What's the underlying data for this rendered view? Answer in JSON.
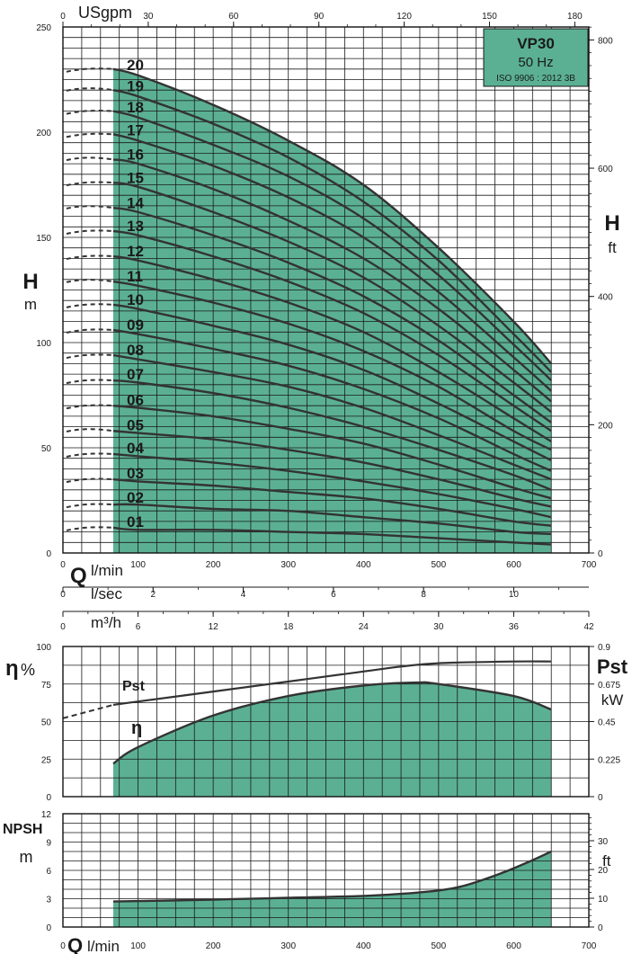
{
  "colors": {
    "fill": "#5bb093",
    "curve": "#333333",
    "grid": "#1a1a1a"
  },
  "labels": {
    "usgpm": "USgpm",
    "h_left": "H",
    "h_left_unit": "m",
    "h_right": "H",
    "h_right_unit": "ft",
    "q": "Q",
    "lmin": "l/min",
    "lsec": "l/sec",
    "m3h": "m³/h",
    "eta": "η",
    "eta_pct": "%",
    "eta_curve": "η",
    "pst_curve": "Pst",
    "pst": "Pst",
    "kw": "kW",
    "npsh": "NPSH",
    "npsh_m": "m",
    "npsh_ft": "ft",
    "q_bottom": "Q",
    "lmin_bottom": "l/min"
  },
  "legend": {
    "model": "VP30",
    "freq": "50 Hz",
    "iso": "ISO 9906 : 2012 3B"
  },
  "chart_data": [
    {
      "type": "line",
      "title": "VP30",
      "xlabel": "Q l/min",
      "ylabel": "H m",
      "xlim": [
        0,
        700
      ],
      "ylim": [
        0,
        250
      ],
      "grid": true,
      "x_ticks": [
        "0",
        "100",
        "200",
        "300",
        "400",
        "500",
        "600",
        "700"
      ],
      "y_ticks": [
        "0",
        "50",
        "100",
        "150",
        "200",
        "250"
      ],
      "secondary_x": [
        {
          "label": "USgpm",
          "ticks": [
            "0",
            "30",
            "60",
            "90",
            "120",
            "150",
            "180"
          ]
        },
        {
          "label": "l/sec",
          "ticks": [
            "0",
            "2",
            "4",
            "6",
            "8",
            "10"
          ]
        },
        {
          "label": "m³/h",
          "ticks": [
            "0",
            "6",
            "12",
            "18",
            "24",
            "30",
            "36",
            "42"
          ]
        }
      ],
      "secondary_y": {
        "label": "H ft",
        "ticks": [
          "0",
          "200",
          "400",
          "600",
          "800"
        ]
      },
      "curve_x": [
        67,
        100,
        200,
        300,
        400,
        500,
        600,
        650
      ],
      "series": [
        {
          "name": "20",
          "shutoff": 230,
          "values": [
            230,
            227,
            213,
            196,
            175,
            145,
            110,
            90
          ]
        },
        {
          "name": "19",
          "shutoff": 221,
          "values": [
            220,
            217,
            204,
            188,
            167,
            139,
            104,
            86
          ]
        },
        {
          "name": "18",
          "shutoff": 210,
          "values": [
            210,
            207,
            194,
            179,
            159,
            132,
            99,
            82
          ]
        },
        {
          "name": "17",
          "shutoff": 199,
          "values": [
            199,
            196,
            184,
            169,
            150,
            124,
            93,
            77
          ]
        },
        {
          "name": "16",
          "shutoff": 188,
          "values": [
            187,
            185,
            173,
            158,
            140,
            116,
            87,
            72
          ]
        },
        {
          "name": "15",
          "shutoff": 176,
          "values": [
            176,
            174,
            162,
            148,
            131,
            108,
            81,
            67
          ]
        },
        {
          "name": "14",
          "shutoff": 165,
          "values": [
            164,
            162,
            151,
            138,
            122,
            101,
            75,
            62
          ]
        },
        {
          "name": "13",
          "shutoff": 153,
          "values": [
            153,
            151,
            141,
            129,
            114,
            94,
            70,
            58
          ]
        },
        {
          "name": "12",
          "shutoff": 141,
          "values": [
            141,
            139,
            130,
            119,
            105,
            86,
            64,
            53
          ]
        },
        {
          "name": "11",
          "shutoff": 130,
          "values": [
            129,
            127,
            119,
            109,
            96,
            79,
            58,
            49
          ]
        },
        {
          "name": "10",
          "shutoff": 118,
          "values": [
            118,
            116,
            108,
            99,
            87,
            71,
            53,
            44
          ]
        },
        {
          "name": "09",
          "shutoff": 106,
          "values": [
            106,
            104,
            97,
            89,
            78,
            64,
            47,
            39
          ]
        },
        {
          "name": "08",
          "shutoff": 94,
          "values": [
            94,
            92,
            86,
            79,
            69,
            56,
            42,
            35
          ]
        },
        {
          "name": "07",
          "shutoff": 82,
          "values": [
            82,
            81,
            76,
            69,
            60,
            49,
            37,
            30
          ]
        },
        {
          "name": "06",
          "shutoff": 70,
          "values": [
            70,
            69,
            65,
            59,
            52,
            42,
            31,
            26
          ]
        },
        {
          "name": "05",
          "shutoff": 59,
          "values": [
            58,
            57,
            54,
            49,
            43,
            35,
            26,
            22
          ]
        },
        {
          "name": "04",
          "shutoff": 47,
          "values": [
            47,
            46,
            43,
            39,
            34,
            28,
            21,
            17
          ]
        },
        {
          "name": "03",
          "shutoff": 35,
          "values": [
            35,
            34,
            32,
            29,
            26,
            21,
            15,
            13
          ]
        },
        {
          "name": "02",
          "shutoff": 23,
          "values": [
            23,
            23,
            21,
            20,
            17,
            14,
            10,
            9
          ]
        },
        {
          "name": "01",
          "shutoff": 12,
          "values": [
            12,
            11,
            11,
            10,
            9,
            7,
            5,
            4
          ]
        }
      ]
    },
    {
      "type": "line",
      "xlim": [
        0,
        700
      ],
      "ylabel": "η %",
      "ylim": [
        0,
        100
      ],
      "y_ticks": [
        "0",
        "25",
        "50",
        "75",
        "100"
      ],
      "secondary_y": {
        "label": "Pst kW",
        "ylim": [
          0,
          0.9
        ],
        "ticks": [
          "0",
          "0.225",
          "0.45",
          "0.675",
          "0.9"
        ]
      },
      "grid": true,
      "series": [
        {
          "name": "η",
          "x": [
            67,
            100,
            200,
            300,
            400,
            470,
            500,
            600,
            650
          ],
          "values": [
            22,
            33,
            54,
            67,
            74,
            76,
            75,
            67,
            58
          ]
        },
        {
          "name": "Pst",
          "x": [
            67,
            100,
            200,
            300,
            400,
            450,
            500,
            600,
            650
          ],
          "values": [
            0.55,
            0.57,
            0.63,
            0.69,
            0.75,
            0.78,
            0.8,
            0.81,
            0.81
          ]
        },
        {
          "name": "Pst extrapolated",
          "x": [
            0,
            67
          ],
          "values": [
            0.47,
            0.55
          ]
        }
      ]
    },
    {
      "type": "area",
      "xlabel": "Q l/min",
      "xlim": [
        0,
        700
      ],
      "x_ticks": [
        "0",
        "100",
        "200",
        "300",
        "400",
        "500",
        "600",
        "700"
      ],
      "ylabel": "NPSH m",
      "ylim": [
        0,
        12
      ],
      "y_ticks": [
        "0",
        "3",
        "6",
        "9",
        "12"
      ],
      "secondary_y": {
        "label": "ft",
        "ticks": [
          "0",
          "10",
          "20",
          "30"
        ]
      },
      "grid": true,
      "series": [
        {
          "name": "NPSH",
          "x": [
            67,
            200,
            300,
            400,
            480,
            530,
            580,
            620,
            650
          ],
          "values": [
            2.7,
            2.9,
            3.1,
            3.3,
            3.7,
            4.3,
            5.6,
            6.9,
            8.0
          ]
        }
      ]
    }
  ]
}
